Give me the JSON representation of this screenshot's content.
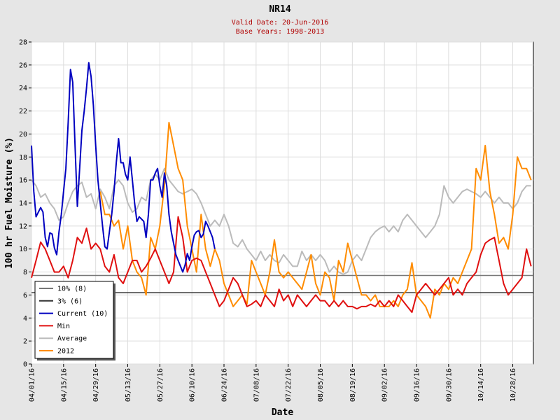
{
  "header": {
    "title": "NR14",
    "valid_date": "Valid Date: 20-Jun-2016",
    "base_years": "Base Years: 1998-2013"
  },
  "colors": {
    "current": "#0000c0",
    "min": "#e01010",
    "average": "#bbbbbb",
    "y2012": "#ff8c00",
    "p10": "#777777",
    "p3": "#333333"
  },
  "chart_data": {
    "type": "line",
    "xlabel": "Date",
    "ylabel": "100 hr Fuel Moisture (%)",
    "ylim": [
      0,
      28
    ],
    "yticks": [
      0,
      2,
      4,
      6,
      8,
      10,
      12,
      14,
      16,
      18,
      20,
      22,
      24,
      26,
      28
    ],
    "x_start": "04/01/16",
    "x_end": "11/06/16",
    "xticks": [
      "04/01/16",
      "04/15/16",
      "04/29/16",
      "05/13/16",
      "05/27/16",
      "06/10/16",
      "06/24/16",
      "07/08/16",
      "07/22/16",
      "08/05/16",
      "08/19/16",
      "09/02/16",
      "09/16/16",
      "09/30/16",
      "10/14/16",
      "10/28/16"
    ],
    "grid": true,
    "legend_position": "bottom-left",
    "hlines": [
      {
        "name": "10% (8)",
        "value": 7.7,
        "color": "#777777"
      },
      {
        "name": "3% (6)",
        "value": 6.2,
        "color": "#333333"
      }
    ],
    "series": [
      {
        "name": "Current (10)",
        "color": "#0000c0",
        "x": [
          0,
          1,
          2,
          3,
          4,
          5,
          6,
          7,
          8,
          9,
          10,
          11,
          12,
          13,
          14,
          15,
          16,
          17,
          18,
          19,
          20,
          21,
          22,
          23,
          24,
          25,
          26,
          27,
          28,
          29,
          30,
          31,
          32,
          33,
          34,
          35,
          36,
          37,
          38,
          39,
          40,
          41,
          42,
          43,
          44,
          45,
          46,
          47,
          48,
          49,
          50,
          51,
          52,
          53,
          54,
          55,
          56,
          57,
          58,
          59,
          60,
          61,
          62,
          63,
          64,
          65,
          66,
          67,
          68,
          69,
          70,
          71,
          72,
          73,
          74,
          75,
          76,
          77,
          78,
          79,
          80
        ],
        "y": [
          19.0,
          15.0,
          12.8,
          13.2,
          13.6,
          13.2,
          11.0,
          10.2,
          11.4,
          11.3,
          10.1,
          9.5,
          11.5,
          13.0,
          15.0,
          17.0,
          21.0,
          25.6,
          24.5,
          19.0,
          13.7,
          17.0,
          20.3,
          22.0,
          24.0,
          26.2,
          25.0,
          22.5,
          19.0,
          16.0,
          14.0,
          12.0,
          10.2,
          10.0,
          11.5,
          13.0,
          15.0,
          17.5,
          19.6,
          17.5,
          17.5,
          16.5,
          16.0,
          18.0,
          16.0,
          14.0,
          12.4,
          12.8,
          12.6,
          12.4,
          11.0,
          13.0,
          16.0,
          16.0,
          16.6,
          17.0,
          15.5,
          14.5,
          16.6,
          15.5,
          13.0,
          11.5,
          10.5,
          9.5,
          9.0,
          8.5,
          8.0,
          8.6,
          9.6,
          9.0,
          10.2,
          11.2,
          11.5,
          11.6,
          11.0,
          11.3,
          12.4,
          12.0,
          11.5,
          11.0,
          10.0
        ]
      },
      {
        "name": "Min",
        "color": "#e01010",
        "x": [
          0,
          2,
          4,
          6,
          8,
          10,
          12,
          14,
          16,
          18,
          20,
          22,
          24,
          26,
          28,
          30,
          32,
          34,
          36,
          38,
          40,
          42,
          44,
          46,
          48,
          50,
          52,
          54,
          56,
          58,
          60,
          62,
          64,
          66,
          68,
          70,
          72,
          74,
          76,
          78,
          80,
          82,
          84,
          86,
          88,
          90,
          92,
          94,
          96,
          98,
          100,
          102,
          104,
          106,
          108,
          110,
          112,
          114,
          116,
          118,
          120,
          122,
          124,
          126,
          128,
          130,
          132,
          134,
          136,
          138,
          140,
          142,
          144,
          146,
          148,
          150,
          152,
          154,
          156,
          158,
          160,
          162,
          164,
          166,
          168,
          170,
          172,
          174,
          176,
          178,
          180,
          182,
          184,
          186,
          188,
          190,
          192,
          194,
          196,
          198,
          200,
          202,
          204,
          206,
          208,
          210,
          212,
          214,
          216,
          218
        ],
        "y": [
          7.5,
          9.0,
          10.6,
          10.0,
          9.0,
          8.0,
          8.0,
          8.5,
          7.5,
          9.0,
          11.0,
          10.5,
          11.8,
          10.0,
          10.5,
          10.0,
          8.5,
          8.0,
          9.5,
          7.5,
          7.0,
          8.0,
          9.0,
          9.0,
          8.0,
          8.5,
          9.2,
          10.0,
          9.0,
          8.0,
          7.0,
          8.0,
          12.8,
          11.0,
          8.0,
          9.0,
          9.2,
          9.0,
          8.0,
          7.0,
          6.0,
          5.0,
          5.5,
          6.5,
          7.5,
          7.0,
          6.0,
          5.0,
          5.2,
          5.5,
          5.0,
          6.0,
          5.5,
          5.0,
          6.5,
          5.5,
          6.0,
          5.0,
          6.0,
          5.5,
          5.0,
          5.5,
          6.0,
          5.5,
          5.5,
          5.0,
          5.5,
          5.0,
          5.5,
          5.0,
          5.0,
          4.8,
          5.0,
          5.0,
          5.2,
          5.0,
          5.5,
          5.0,
          5.5,
          5.0,
          6.0,
          5.5,
          5.0,
          4.5,
          6.0,
          6.5,
          7.0,
          6.5,
          6.0,
          6.5,
          7.0,
          7.5,
          6.0,
          6.5,
          6.0,
          7.0,
          7.5,
          8.0,
          9.5,
          10.5,
          10.8,
          11.0,
          9.0,
          7.0,
          6.0,
          6.5,
          7.0,
          7.5,
          10.0,
          8.5
        ]
      },
      {
        "name": "Average",
        "color": "#bbbbbb",
        "x": [
          0,
          2,
          4,
          6,
          8,
          10,
          12,
          14,
          16,
          18,
          20,
          22,
          24,
          26,
          28,
          30,
          32,
          34,
          36,
          38,
          40,
          42,
          44,
          46,
          48,
          50,
          52,
          54,
          56,
          58,
          60,
          62,
          64,
          66,
          68,
          70,
          72,
          74,
          76,
          78,
          80,
          82,
          84,
          86,
          88,
          90,
          92,
          94,
          96,
          98,
          100,
          102,
          104,
          106,
          108,
          110,
          112,
          114,
          116,
          118,
          120,
          122,
          124,
          126,
          128,
          130,
          132,
          134,
          136,
          138,
          140,
          142,
          144,
          146,
          148,
          150,
          152,
          154,
          156,
          158,
          160,
          162,
          164,
          166,
          168,
          170,
          172,
          174,
          176,
          178,
          180,
          182,
          184,
          186,
          188,
          190,
          192,
          194,
          196,
          198,
          200,
          202,
          204,
          206,
          208,
          210,
          212,
          214,
          216,
          218
        ],
        "y": [
          16.0,
          15.5,
          14.5,
          14.8,
          14.0,
          13.5,
          12.5,
          12.8,
          14.0,
          15.0,
          15.5,
          15.8,
          14.5,
          14.8,
          13.5,
          15.2,
          14.5,
          13.5,
          15.5,
          16.0,
          15.5,
          14.0,
          13.2,
          13.5,
          14.5,
          14.2,
          16.0,
          16.5,
          16.0,
          17.0,
          16.0,
          15.5,
          15.0,
          14.8,
          15.0,
          15.2,
          14.8,
          14.0,
          13.0,
          12.0,
          12.5,
          12.0,
          13.0,
          12.0,
          10.5,
          10.2,
          10.8,
          10.0,
          9.5,
          9.0,
          9.8,
          9.0,
          9.5,
          9.0,
          8.8,
          9.5,
          9.0,
          8.5,
          8.5,
          9.8,
          9.0,
          9.5,
          9.0,
          9.5,
          9.0,
          8.0,
          8.5,
          8.0,
          7.8,
          8.0,
          9.0,
          9.5,
          9.0,
          10.0,
          11.0,
          11.5,
          11.8,
          12.0,
          11.5,
          12.0,
          11.5,
          12.5,
          13.0,
          12.5,
          12.0,
          11.5,
          11.0,
          11.5,
          12.0,
          13.0,
          15.5,
          14.5,
          14.0,
          14.5,
          15.0,
          15.2,
          15.0,
          14.8,
          14.5,
          15.0,
          14.5,
          14.0,
          14.5,
          14.0,
          14.0,
          13.5,
          14.0,
          15.0,
          15.5,
          15.5
        ]
      },
      {
        "name": "2012",
        "color": "#ff8c00",
        "x": [
          30,
          32,
          34,
          36,
          38,
          40,
          42,
          44,
          46,
          48,
          50,
          52,
          54,
          56,
          58,
          60,
          62,
          64,
          66,
          68,
          70,
          72,
          74,
          76,
          78,
          80,
          82,
          84,
          86,
          88,
          90,
          92,
          94,
          96,
          98,
          100,
          102,
          104,
          106,
          108,
          110,
          112,
          114,
          116,
          118,
          120,
          122,
          124,
          126,
          128,
          130,
          132,
          134,
          136,
          138,
          140,
          142,
          144,
          146,
          148,
          150,
          152,
          154,
          156,
          158,
          160,
          162,
          164,
          166,
          168,
          170,
          172,
          174,
          176,
          178,
          180,
          182,
          184,
          186,
          188,
          190,
          192,
          194,
          196,
          198,
          200,
          202,
          204,
          206,
          208,
          210,
          212,
          214,
          216,
          218
        ],
        "y": [
          15.0,
          13.0,
          13.0,
          12.0,
          12.5,
          10.0,
          12.0,
          9.0,
          8.0,
          7.5,
          6.0,
          11.0,
          10.0,
          12.0,
          15.5,
          21.0,
          19.0,
          17.0,
          16.0,
          12.0,
          10.0,
          8.0,
          13.0,
          10.0,
          8.5,
          10.0,
          9.0,
          7.0,
          6.0,
          5.0,
          5.5,
          6.0,
          5.2,
          9.0,
          8.0,
          7.0,
          6.0,
          8.0,
          10.8,
          8.0,
          7.5,
          8.0,
          7.5,
          7.0,
          6.5,
          8.0,
          9.5,
          7.0,
          6.0,
          8.0,
          7.5,
          5.5,
          9.0,
          8.0,
          10.5,
          9.0,
          7.5,
          6.0,
          6.0,
          5.5,
          6.0,
          5.0,
          5.0,
          5.0,
          5.5,
          5.0,
          6.0,
          6.5,
          8.8,
          6.0,
          5.5,
          5.0,
          4.0,
          6.5,
          6.0,
          7.0,
          6.5,
          7.5,
          7.0,
          8.0,
          9.0,
          10.0,
          17.0,
          16.0,
          19.0,
          15.0,
          13.0,
          10.5,
          11.0,
          10.0,
          13.0,
          18.0,
          17.0,
          17.0,
          16.0
        ]
      }
    ]
  }
}
